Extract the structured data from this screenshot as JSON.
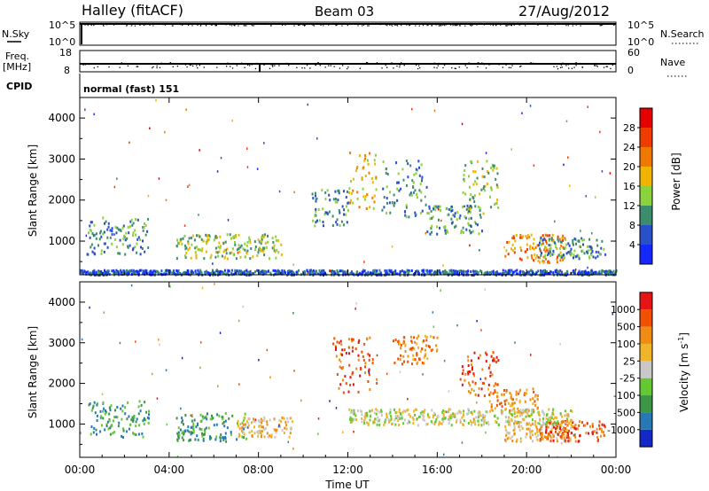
{
  "chart_data": [
    {
      "type": "line",
      "title": "Halley (fitACF)",
      "subtitle": "Beam 03",
      "date": "27/Aug/2012",
      "noise_panel": {
        "left_label": "N.Sky",
        "right_label": "N.Search",
        "left_ticks": [
          "10^5",
          "10^0"
        ],
        "right_ticks": [
          "10^5",
          "10^0"
        ]
      },
      "freq_panel": {
        "left_label_1": "Freq.",
        "left_label_2": "[MHz]",
        "right_label": "Nave",
        "left_ticks": [
          "18",
          "8"
        ],
        "right_ticks": [
          "60",
          "0"
        ]
      },
      "cpid_panel": {
        "label": "CPID",
        "text": "normal (fast) 151"
      }
    },
    {
      "type": "heatmap",
      "name": "power",
      "ylabel": "Slant Range [km]",
      "xlabel": "",
      "ylim": [
        180,
        4500
      ],
      "yticks": [
        1000,
        2000,
        3000,
        4000
      ],
      "xticks": [
        "00:00",
        "04:00",
        "08:00",
        "12:00",
        "16:00",
        "20:00",
        "00:00"
      ],
      "colorbar": {
        "label": "Power [dB]",
        "ticks": [
          "4",
          "8",
          "12",
          "16",
          "20",
          "24",
          "28"
        ],
        "colors": [
          "#1428ff",
          "#2850c8",
          "#3c8c6e",
          "#8cd23c",
          "#f0b400",
          "#f07800",
          "#f03c00",
          "#e60000"
        ]
      },
      "bands": [
        {
          "t": [
            0.3,
            3.1
          ],
          "r": [
            700,
            1600
          ],
          "level": 2
        },
        {
          "t": [
            4.3,
            9.0
          ],
          "r": [
            600,
            1200
          ],
          "level": 3
        },
        {
          "t": [
            10.3,
            12.0
          ],
          "r": [
            1400,
            2300
          ],
          "level": 2
        },
        {
          "t": [
            12.0,
            13.3
          ],
          "r": [
            1800,
            3200
          ],
          "level": 4
        },
        {
          "t": [
            13.5,
            15.5
          ],
          "r": [
            1600,
            3000
          ],
          "level": 2
        },
        {
          "t": [
            15.5,
            18.0
          ],
          "r": [
            1200,
            1900
          ],
          "level": 2
        },
        {
          "t": [
            17.0,
            18.7
          ],
          "r": [
            1700,
            3000
          ],
          "level": 3
        },
        {
          "t": [
            19.0,
            21.7
          ],
          "r": [
            500,
            1200
          ],
          "level": 5
        },
        {
          "t": [
            20.5,
            23.5
          ],
          "r": [
            600,
            1100
          ],
          "level": 2
        },
        {
          "t": [
            0.0,
            24.0
          ],
          "r": [
            200,
            320
          ],
          "level": 1
        }
      ]
    },
    {
      "type": "heatmap",
      "name": "velocity",
      "ylabel": "Slant Range [km]",
      "xlabel": "Time UT",
      "ylim": [
        180,
        4500
      ],
      "yticks": [
        1000,
        2000,
        3000,
        4000
      ],
      "xticks": [
        "00:00",
        "04:00",
        "08:00",
        "12:00",
        "16:00",
        "20:00",
        "00:00"
      ],
      "colorbar": {
        "label": "Velocity [m s",
        "label_sup": "-1",
        "label_end": "]",
        "ticks": [
          "1000",
          "500",
          "100",
          "25",
          "-25",
          "-100",
          "-500",
          "-1000"
        ],
        "colors": [
          "#1428c8",
          "#2878b4",
          "#3c9646",
          "#64c832",
          "#c8c8c8",
          "#f0b428",
          "#f08c14",
          "#f05000",
          "#e61414"
        ]
      },
      "bands": [
        {
          "t": [
            0.3,
            3.1
          ],
          "r": [
            700,
            1600
          ],
          "level": 2
        },
        {
          "t": [
            4.3,
            7.5
          ],
          "r": [
            600,
            1300
          ],
          "level": 2
        },
        {
          "t": [
            7.0,
            9.5
          ],
          "r": [
            700,
            1200
          ],
          "level": 5
        },
        {
          "t": [
            11.3,
            13.3
          ],
          "r": [
            1800,
            3200
          ],
          "level": 7
        },
        {
          "t": [
            14.0,
            16.0
          ],
          "r": [
            2500,
            3200
          ],
          "level": 6
        },
        {
          "t": [
            17.0,
            18.7
          ],
          "r": [
            1700,
            2800
          ],
          "level": 7
        },
        {
          "t": [
            18.2,
            20.5
          ],
          "r": [
            1300,
            1900
          ],
          "level": 6
        },
        {
          "t": [
            19.0,
            22.0
          ],
          "r": [
            600,
            1100
          ],
          "level": 5
        },
        {
          "t": [
            20.5,
            23.5
          ],
          "r": [
            600,
            1100
          ],
          "level": 7
        },
        {
          "t": [
            12.0,
            22.0
          ],
          "r": [
            1000,
            1400
          ],
          "level": 4
        }
      ]
    }
  ]
}
